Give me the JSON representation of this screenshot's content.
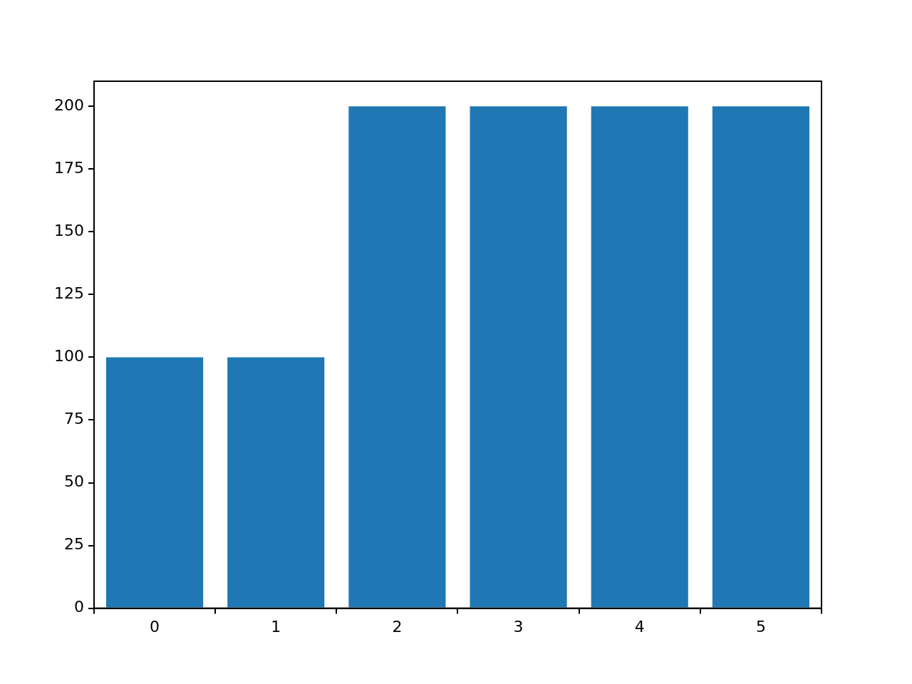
{
  "chart_data": {
    "type": "bar",
    "categories": [
      "0",
      "1",
      "2",
      "3",
      "4",
      "5"
    ],
    "values": [
      100,
      100,
      200,
      200,
      200,
      200
    ],
    "color": "#1f77b4",
    "ylim": [
      0,
      210
    ],
    "yticks": [
      0,
      25,
      50,
      75,
      100,
      125,
      150,
      175,
      200
    ],
    "grid": false
  }
}
